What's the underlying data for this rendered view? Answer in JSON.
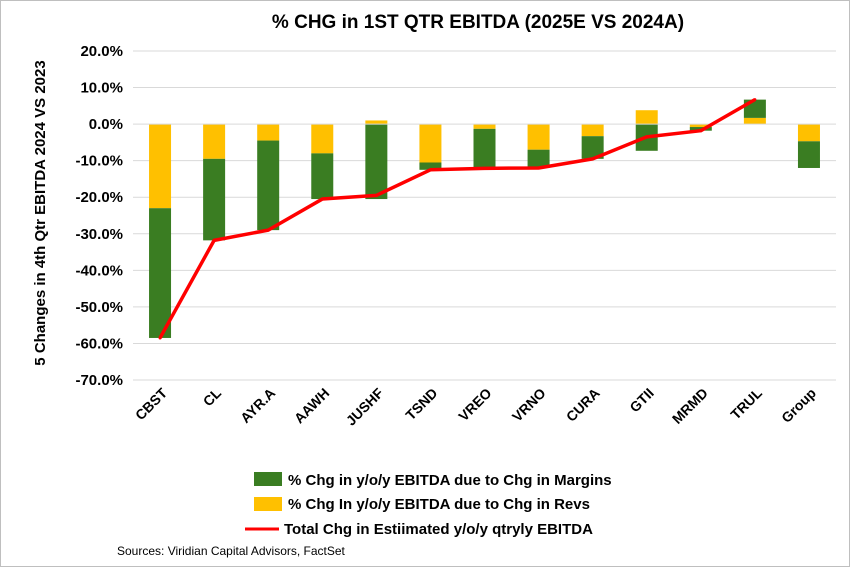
{
  "chart_data": {
    "type": "bar",
    "stacked": true,
    "title": "% CHG in 1ST QTR EBITDA (2025E VS 2024A)",
    "ylabel": "5 Changes in 4th Qtr  EBITDA 2024 VS 2023",
    "xlabel": "",
    "ylim": [
      -70,
      20
    ],
    "yticks": [
      "20.0%",
      "10.0%",
      "0.0%",
      "-10.0%",
      "-20.0%",
      "-30.0%",
      "-40.0%",
      "-50.0%",
      "-60.0%",
      "-70.0%"
    ],
    "grid": true,
    "legend_position": "bottom",
    "categories": [
      "CBST",
      "CL",
      "AYR.A",
      "AAWH",
      "JUSHF",
      "TSND",
      "VREO",
      "VRNO",
      "CURA",
      "GTII",
      "MRMD",
      "TRUL",
      "Group"
    ],
    "series": [
      {
        "name": "% Chg In y/o/y EBITDA due to Chg in Revs",
        "kind": "bar",
        "color": "#ffc000",
        "values": [
          -23.0,
          -9.5,
          -4.5,
          -8.0,
          1.0,
          -10.5,
          -1.3,
          -7.0,
          -3.3,
          3.8,
          -0.8,
          1.7,
          -4.7
        ]
      },
      {
        "name": "% Chg in y/o/y EBITDA due to Chg in Margins",
        "kind": "bar",
        "color": "#3a7d22",
        "values": [
          -35.5,
          -22.3,
          -24.5,
          -12.5,
          -20.5,
          -2.0,
          -10.8,
          -5.0,
          -6.2,
          -7.3,
          -1.0,
          5.0,
          -7.3
        ]
      },
      {
        "name": "Total Chg in Estiimated y/o/y qtryly  EBITDA",
        "kind": "line",
        "color": "#ff0000",
        "values": [
          -58.5,
          -31.8,
          -29.0,
          -20.5,
          -19.5,
          -12.5,
          -12.1,
          -12.0,
          -9.5,
          -3.5,
          -1.8,
          6.7,
          null
        ]
      }
    ],
    "source": "Sources: Viridian Capital Advisors, FactSet"
  }
}
